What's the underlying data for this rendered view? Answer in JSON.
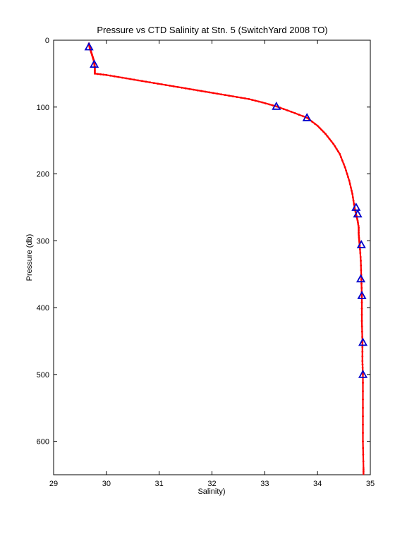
{
  "chart_data": {
    "type": "line",
    "title": "Pressure vs CTD Salinity at Stn. 5 (SwitchYard 2008 TO)",
    "xlabel": "Salinity)",
    "ylabel": "Pressure (db)",
    "xlim": [
      29,
      35
    ],
    "ylim": [
      0,
      650
    ],
    "y_reversed": true,
    "x_ticks": [
      29,
      30,
      31,
      32,
      33,
      34,
      35
    ],
    "y_ticks": [
      0,
      100,
      200,
      300,
      400,
      500,
      600
    ],
    "grid": false,
    "colors": {
      "profile": "#ff0000",
      "bottle_marker": "#0000cc"
    },
    "series": [
      {
        "style": "red-dotted-line",
        "x": [
          29.67,
          29.68,
          29.7,
          29.72,
          29.74,
          29.76,
          29.77,
          29.78,
          29.78,
          29.78,
          30.0,
          30.3,
          30.6,
          30.9,
          31.2,
          31.5,
          31.8,
          32.1,
          32.4,
          32.7,
          32.95,
          33.22,
          33.5,
          33.8,
          34.0,
          34.15,
          34.3,
          34.42,
          34.52,
          34.6,
          34.66,
          34.7,
          34.73,
          34.76,
          34.78,
          34.78,
          34.79,
          34.8,
          34.82,
          34.83,
          34.84,
          34.84,
          34.85,
          34.85,
          34.86,
          34.86,
          34.86,
          34.87,
          34.87
        ],
        "y": [
          5,
          10,
          15,
          20,
          25,
          30,
          35,
          40,
          45,
          50,
          52,
          56,
          60,
          64,
          68,
          72,
          76,
          80,
          84,
          88,
          93,
          99,
          107,
          116,
          128,
          140,
          155,
          170,
          190,
          210,
          230,
          250,
          260,
          270,
          280,
          290,
          300,
          307,
          330,
          358,
          383,
          420,
          452,
          480,
          500,
          550,
          600,
          640,
          650
        ]
      },
      {
        "style": "blue-triangle-markers",
        "x": [
          29.67,
          29.77,
          33.22,
          33.8,
          34.73,
          34.76,
          34.83,
          34.82,
          34.84,
          34.86,
          34.86
        ],
        "y": [
          10,
          36,
          99,
          116,
          250,
          260,
          306,
          357,
          382,
          452,
          500
        ]
      }
    ]
  }
}
